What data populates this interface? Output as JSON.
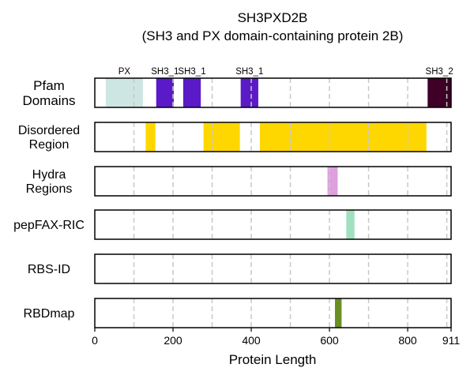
{
  "chart_data": {
    "type": "bar",
    "title": "SH3PXD2B",
    "subtitle": "(SH3 and PX domain-containing protein 2B)",
    "xlabel": "Protein Length",
    "xlim": [
      0,
      911
    ],
    "xticks": [
      0,
      200,
      400,
      600,
      800,
      911
    ],
    "grid_lines": [
      100,
      200,
      300,
      400,
      500,
      600,
      700,
      800,
      900
    ],
    "tracks": [
      {
        "label": "Pfam\nDomains",
        "features": [
          {
            "name": "PX",
            "start": 28,
            "end": 123,
            "color": "#cde5e3"
          },
          {
            "name": "SH3_1",
            "start": 157,
            "end": 202,
            "color": "#5b1ac8"
          },
          {
            "name": "SH3_1",
            "start": 226,
            "end": 271,
            "color": "#5b1ac8"
          },
          {
            "name": "SH3_1",
            "start": 373,
            "end": 418,
            "color": "#5b1ac8"
          },
          {
            "name": "SH3_2",
            "start": 851,
            "end": 911,
            "color": "#3e0027"
          }
        ]
      },
      {
        "label": "Disordered\nRegion",
        "features": [
          {
            "start": 130,
            "end": 155,
            "color": "#ffd700"
          },
          {
            "start": 278,
            "end": 371,
            "color": "#ffd700"
          },
          {
            "start": 422,
            "end": 848,
            "color": "#ffd700"
          }
        ]
      },
      {
        "label": "Hydra\nRegions",
        "features": [
          {
            "start": 595,
            "end": 621,
            "color": "#dda0dd"
          }
        ]
      },
      {
        "label": "pepFAX-RIC",
        "features": [
          {
            "start": 643,
            "end": 664,
            "color": "#a0dfc0"
          }
        ]
      },
      {
        "label": "RBS-ID",
        "features": []
      },
      {
        "label": "RBDmap",
        "features": [
          {
            "start": 614,
            "end": 631,
            "color": "#6b8e23"
          }
        ]
      }
    ]
  }
}
